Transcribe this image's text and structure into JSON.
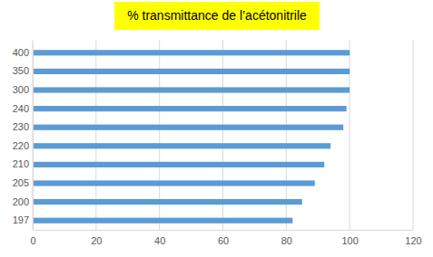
{
  "chart_data": {
    "type": "bar",
    "orientation": "horizontal",
    "title": "% transmittance de l’acétonitrile",
    "categories": [
      "197",
      "200",
      "205",
      "210",
      "220",
      "230",
      "240",
      "300",
      "350",
      "400"
    ],
    "values": [
      82,
      85,
      89,
      92,
      94,
      98,
      99,
      100,
      100,
      100
    ],
    "color": "#5b9bd5",
    "xlim": [
      0,
      120
    ],
    "xticks": [
      0,
      20,
      40,
      60,
      80,
      100,
      120
    ],
    "grid": true
  }
}
